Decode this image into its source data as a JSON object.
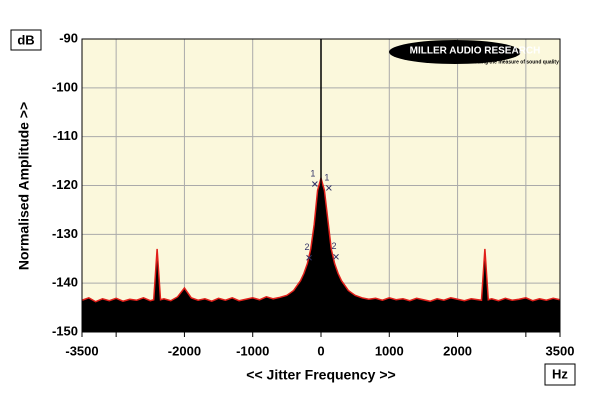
{
  "chart_data": {
    "type": "spectrum",
    "title_unit_y": "dB",
    "title_unit_x": "Hz",
    "ylabel": "Normalised Amplitude >>",
    "xlabel": "<< Jitter Frequency >>",
    "logo": "MILLER AUDIO RESEARCH",
    "tagline": "Setting the measure of sound quality",
    "xlim": [
      -3500,
      3500
    ],
    "ylim": [
      -150,
      -90
    ],
    "xticks": [
      -3500,
      -2000,
      -1000,
      0,
      1000,
      2000,
      3500
    ],
    "minor_xticks": [
      -3000,
      3000
    ],
    "yticks": [
      -150,
      -140,
      -130,
      -120,
      -110,
      -100,
      -90
    ],
    "grid": true,
    "series": [
      {
        "color": "#e0201a",
        "fill": "#000000",
        "x": [
          -3500,
          -3400,
          -3300,
          -3200,
          -3100,
          -3000,
          -2900,
          -2800,
          -2700,
          -2600,
          -2500,
          -2450,
          -2400,
          -2350,
          -2300,
          -2200,
          -2100,
          -2000,
          -1900,
          -1800,
          -1700,
          -1600,
          -1500,
          -1400,
          -1300,
          -1200,
          -1100,
          -1000,
          -900,
          -800,
          -700,
          -600,
          -500,
          -450,
          -400,
          -350,
          -300,
          -250,
          -200,
          -150,
          -100,
          -50,
          0,
          50,
          100,
          150,
          200,
          250,
          300,
          350,
          400,
          450,
          500,
          600,
          700,
          800,
          900,
          1000,
          1100,
          1200,
          1300,
          1400,
          1500,
          1600,
          1700,
          1800,
          1900,
          2000,
          2100,
          2200,
          2300,
          2350,
          2400,
          2450,
          2500,
          2600,
          2700,
          2800,
          2900,
          3000,
          3100,
          3200,
          3300,
          3400,
          3500
        ],
        "values": [
          -143.5,
          -143,
          -143.8,
          -143.2,
          -143.6,
          -143.1,
          -143.7,
          -143.3,
          -143.5,
          -143,
          -143.6,
          -143.4,
          -133,
          -143.4,
          -143.2,
          -143.6,
          -142.8,
          -141,
          -143,
          -143.5,
          -143.2,
          -143.7,
          -143.1,
          -143.5,
          -143,
          -143.6,
          -143.3,
          -143,
          -143.4,
          -142.8,
          -143.2,
          -142.9,
          -142.5,
          -142,
          -141.5,
          -140.5,
          -139.5,
          -138,
          -136,
          -133,
          -128,
          -121,
          -118.5,
          -121,
          -127,
          -133,
          -136,
          -138,
          -139.5,
          -140.5,
          -141.5,
          -142,
          -142.5,
          -143,
          -143.3,
          -143.1,
          -143.5,
          -143,
          -143.4,
          -143.2,
          -143.6,
          -143.1,
          -143.4,
          -143.7,
          -143.2,
          -143.5,
          -143,
          -143.3,
          -143.6,
          -143.2,
          -143.4,
          -143.5,
          -133,
          -143.4,
          -143.2,
          -143.6,
          -143.1,
          -143.5,
          -143.3,
          -143,
          -143.6,
          -143.2,
          -143.5,
          -143.1,
          -143.4
        ]
      }
    ],
    "markers": [
      {
        "label": "1",
        "x": -90,
        "y": -119.7
      },
      {
        "label": "1",
        "x": 115,
        "y": -120.5
      },
      {
        "label": "2",
        "x": -175,
        "y": -134.8
      },
      {
        "label": "2",
        "x": 220,
        "y": -134.6
      }
    ]
  }
}
